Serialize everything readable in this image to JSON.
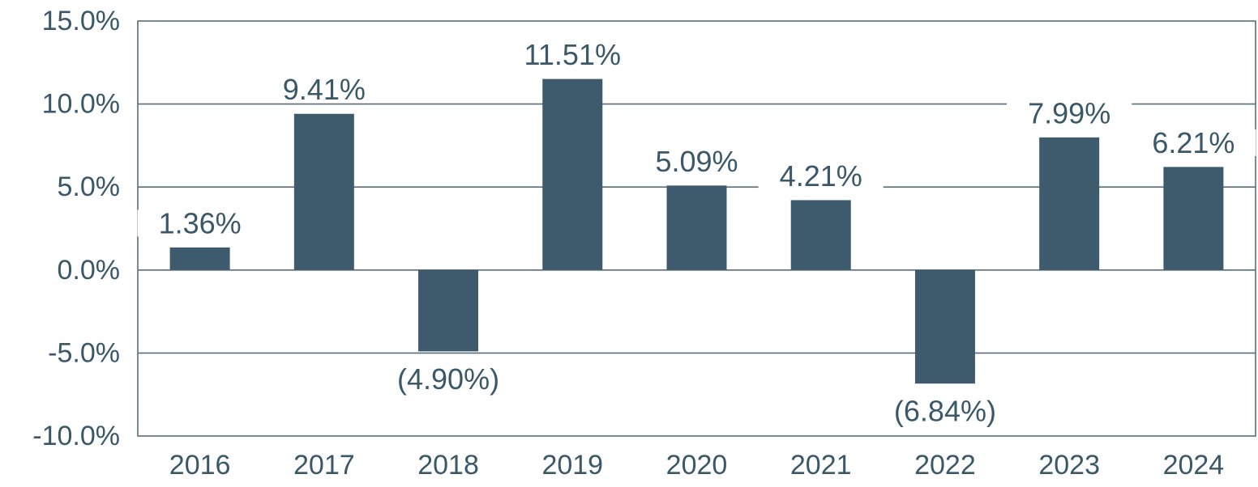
{
  "chart_data": {
    "type": "bar",
    "categories": [
      "2016",
      "2017",
      "2018",
      "2019",
      "2020",
      "2021",
      "2022",
      "2023",
      "2024"
    ],
    "values": [
      1.36,
      9.41,
      -4.9,
      11.51,
      5.09,
      4.21,
      -6.84,
      7.99,
      6.21
    ],
    "value_labels": [
      "1.36%",
      "9.41%",
      "(4.90%)",
      "11.51%",
      "5.09%",
      "4.21%",
      "(6.84%)",
      "7.99%",
      "6.21%"
    ],
    "ylim": [
      -10,
      15
    ],
    "yticks": [
      15,
      10,
      5,
      0,
      -5,
      -10
    ],
    "ytick_labels": [
      "15.0%",
      "10.0%",
      "5.0%",
      "0.0%",
      "-5.0%",
      "-10.0%"
    ],
    "title": "",
    "xlabel": "",
    "ylabel": "",
    "grid": true,
    "legend": "none",
    "colors": {
      "bar": "#3d5b6d",
      "text": "#3b5868",
      "grid": "#5a6e7a",
      "frame": "#5a6e7a"
    }
  }
}
